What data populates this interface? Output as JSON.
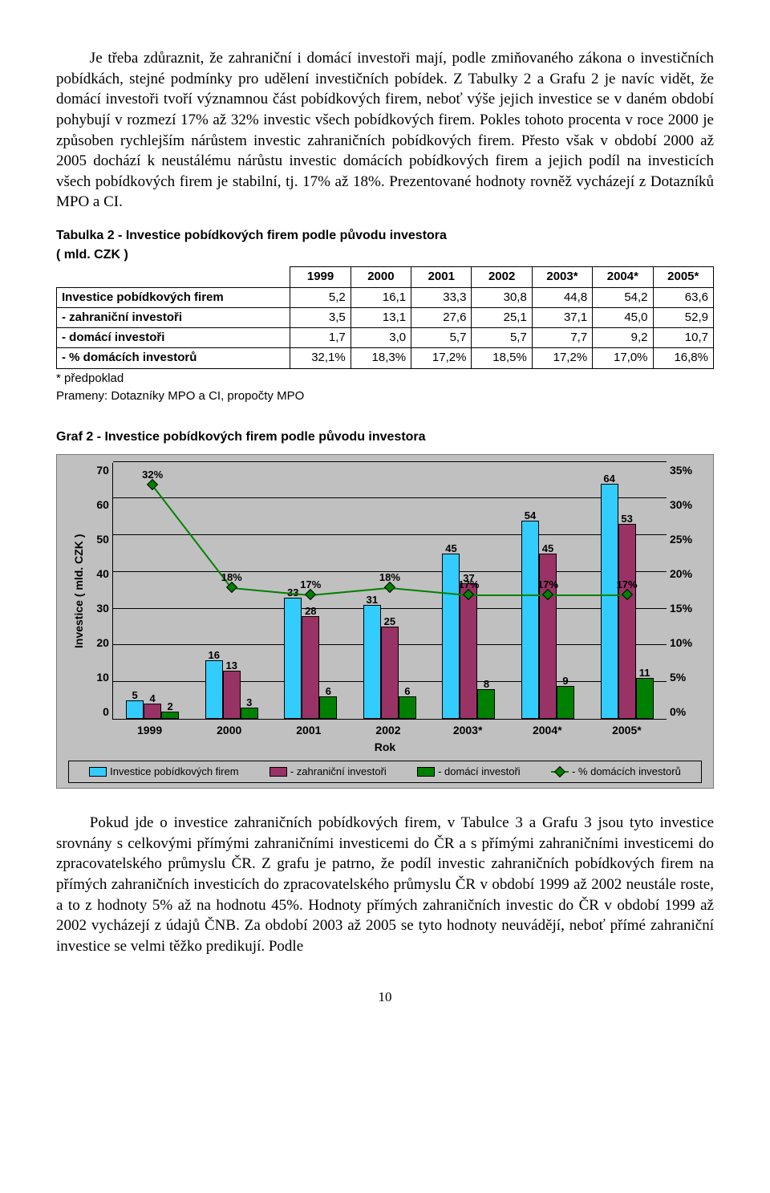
{
  "para1": "Je třeba zdůraznit, že zahraniční i domácí investoři mají, podle zmiňovaného zákona o investičních pobídkách, stejné podmínky pro udělení investičních pobídek. Z Tabulky 2 a Grafu 2 je navíc vidět, že domácí investoři tvoří významnou část pobídkových firem, neboť výše jejich investice se v daném období pohybují v rozmezí 17% až 32% investic všech pobídkových firem. Pokles tohoto procenta v roce 2000 je způsoben rychlejším nárůstem investic zahraničních pobídkových firem. Přesto však v období 2000 až 2005 dochází k neustálému nárůstu investic domácích pobídkových firem a jejich podíl na investicích všech pobídkových firem je stabilní, tj. 17% až 18%. Prezentované hodnoty rovněž vycházejí z Dotazníků MPO a CI.",
  "table2": {
    "title": "Tabulka 2 - Investice pobídkových firem podle původu investora",
    "subtitle": "( mld. CZK )",
    "columns": [
      "1999",
      "2000",
      "2001",
      "2002",
      "2003*",
      "2004*",
      "2005*"
    ],
    "rows": [
      {
        "label": "Investice pobídkových firem",
        "vals": [
          "5,2",
          "16,1",
          "33,3",
          "30,8",
          "44,8",
          "54,2",
          "63,6"
        ]
      },
      {
        "label": " - zahraniční investoři",
        "vals": [
          "3,5",
          "13,1",
          "27,6",
          "25,1",
          "37,1",
          "45,0",
          "52,9"
        ]
      },
      {
        "label": " - domácí investoři",
        "vals": [
          "1,7",
          "3,0",
          "5,7",
          "5,7",
          "7,7",
          "9,2",
          "10,7"
        ]
      },
      {
        "label": " - % domácích investorů",
        "vals": [
          "32,1%",
          "18,3%",
          "17,2%",
          "18,5%",
          "17,2%",
          "17,0%",
          "16,8%"
        ]
      }
    ],
    "foot1": "* předpoklad",
    "foot2": "Prameny: Dotazníky MPO a CI, propočty MPO"
  },
  "chart": {
    "title": "Graf 2 - Investice pobídkových firem podle původu investora",
    "ylabel": "Investice ( mld. CZK )",
    "xlabel": "Rok",
    "categories": [
      "1999",
      "2000",
      "2001",
      "2002",
      "2003*",
      "2004*",
      "2005*"
    ],
    "y_left_max": 70,
    "y_left_step": 10,
    "y_right_max": 35,
    "y_right_step": 5,
    "series": [
      {
        "name": "Investice pobídkových firem",
        "color": "#33ccff",
        "values": [
          5,
          16,
          33,
          31,
          45,
          54,
          64
        ]
      },
      {
        "name": "- zahraniční investoři",
        "color": "#993366",
        "values": [
          4,
          13,
          28,
          25,
          37,
          45,
          53
        ]
      },
      {
        "name": "- domácí investoři",
        "color": "#008000",
        "values": [
          2,
          3,
          6,
          6,
          8,
          9,
          11
        ]
      }
    ],
    "line": {
      "name": "- % domácích investorů",
      "color": "#008000",
      "values_pct": [
        32,
        18,
        17,
        18,
        17,
        17,
        17
      ]
    },
    "bar_labels": [
      [
        "5",
        "4",
        "2"
      ],
      [
        "16",
        "13",
        "3"
      ],
      [
        "33",
        "28",
        "6"
      ],
      [
        "31",
        "25",
        "6"
      ],
      [
        "45",
        "37",
        "8"
      ],
      [
        "54",
        "45",
        "9"
      ],
      [
        "64",
        "53",
        "11"
      ]
    ],
    "line_labels": [
      "32%",
      "18%",
      "17%",
      "18%",
      "17%",
      "17%",
      "17%"
    ],
    "legend": [
      "Investice pobídkových firem",
      "- zahraniční investoři",
      "- domácí investoři",
      "- % domácích investorů"
    ],
    "bg": "#c0c0c0",
    "grid": "#000000"
  },
  "para2": "Pokud jde o investice zahraničních pobídkových firem, v Tabulce 3 a Grafu 3 jsou tyto investice srovnány s celkovými přímými zahraničními investicemi do ČR a s přímými zahraničními investicemi do zpracovatelského průmyslu ČR. Z grafu je patrno, že podíl investic zahraničních pobídkových firem na přímých zahraničních investicích do zpracovatelského průmyslu ČR v období 1999 až 2002 neustále roste, a to z hodnoty 5% až na hodnotu 45%. Hodnoty přímých zahraničních investic do ČR v období 1999 až 2002 vycházejí z údajů ČNB. Za období 2003 až 2005 se tyto hodnoty neuvádějí, neboť přímé zahraniční investice se velmi těžko predikují. Podle",
  "page": "10"
}
